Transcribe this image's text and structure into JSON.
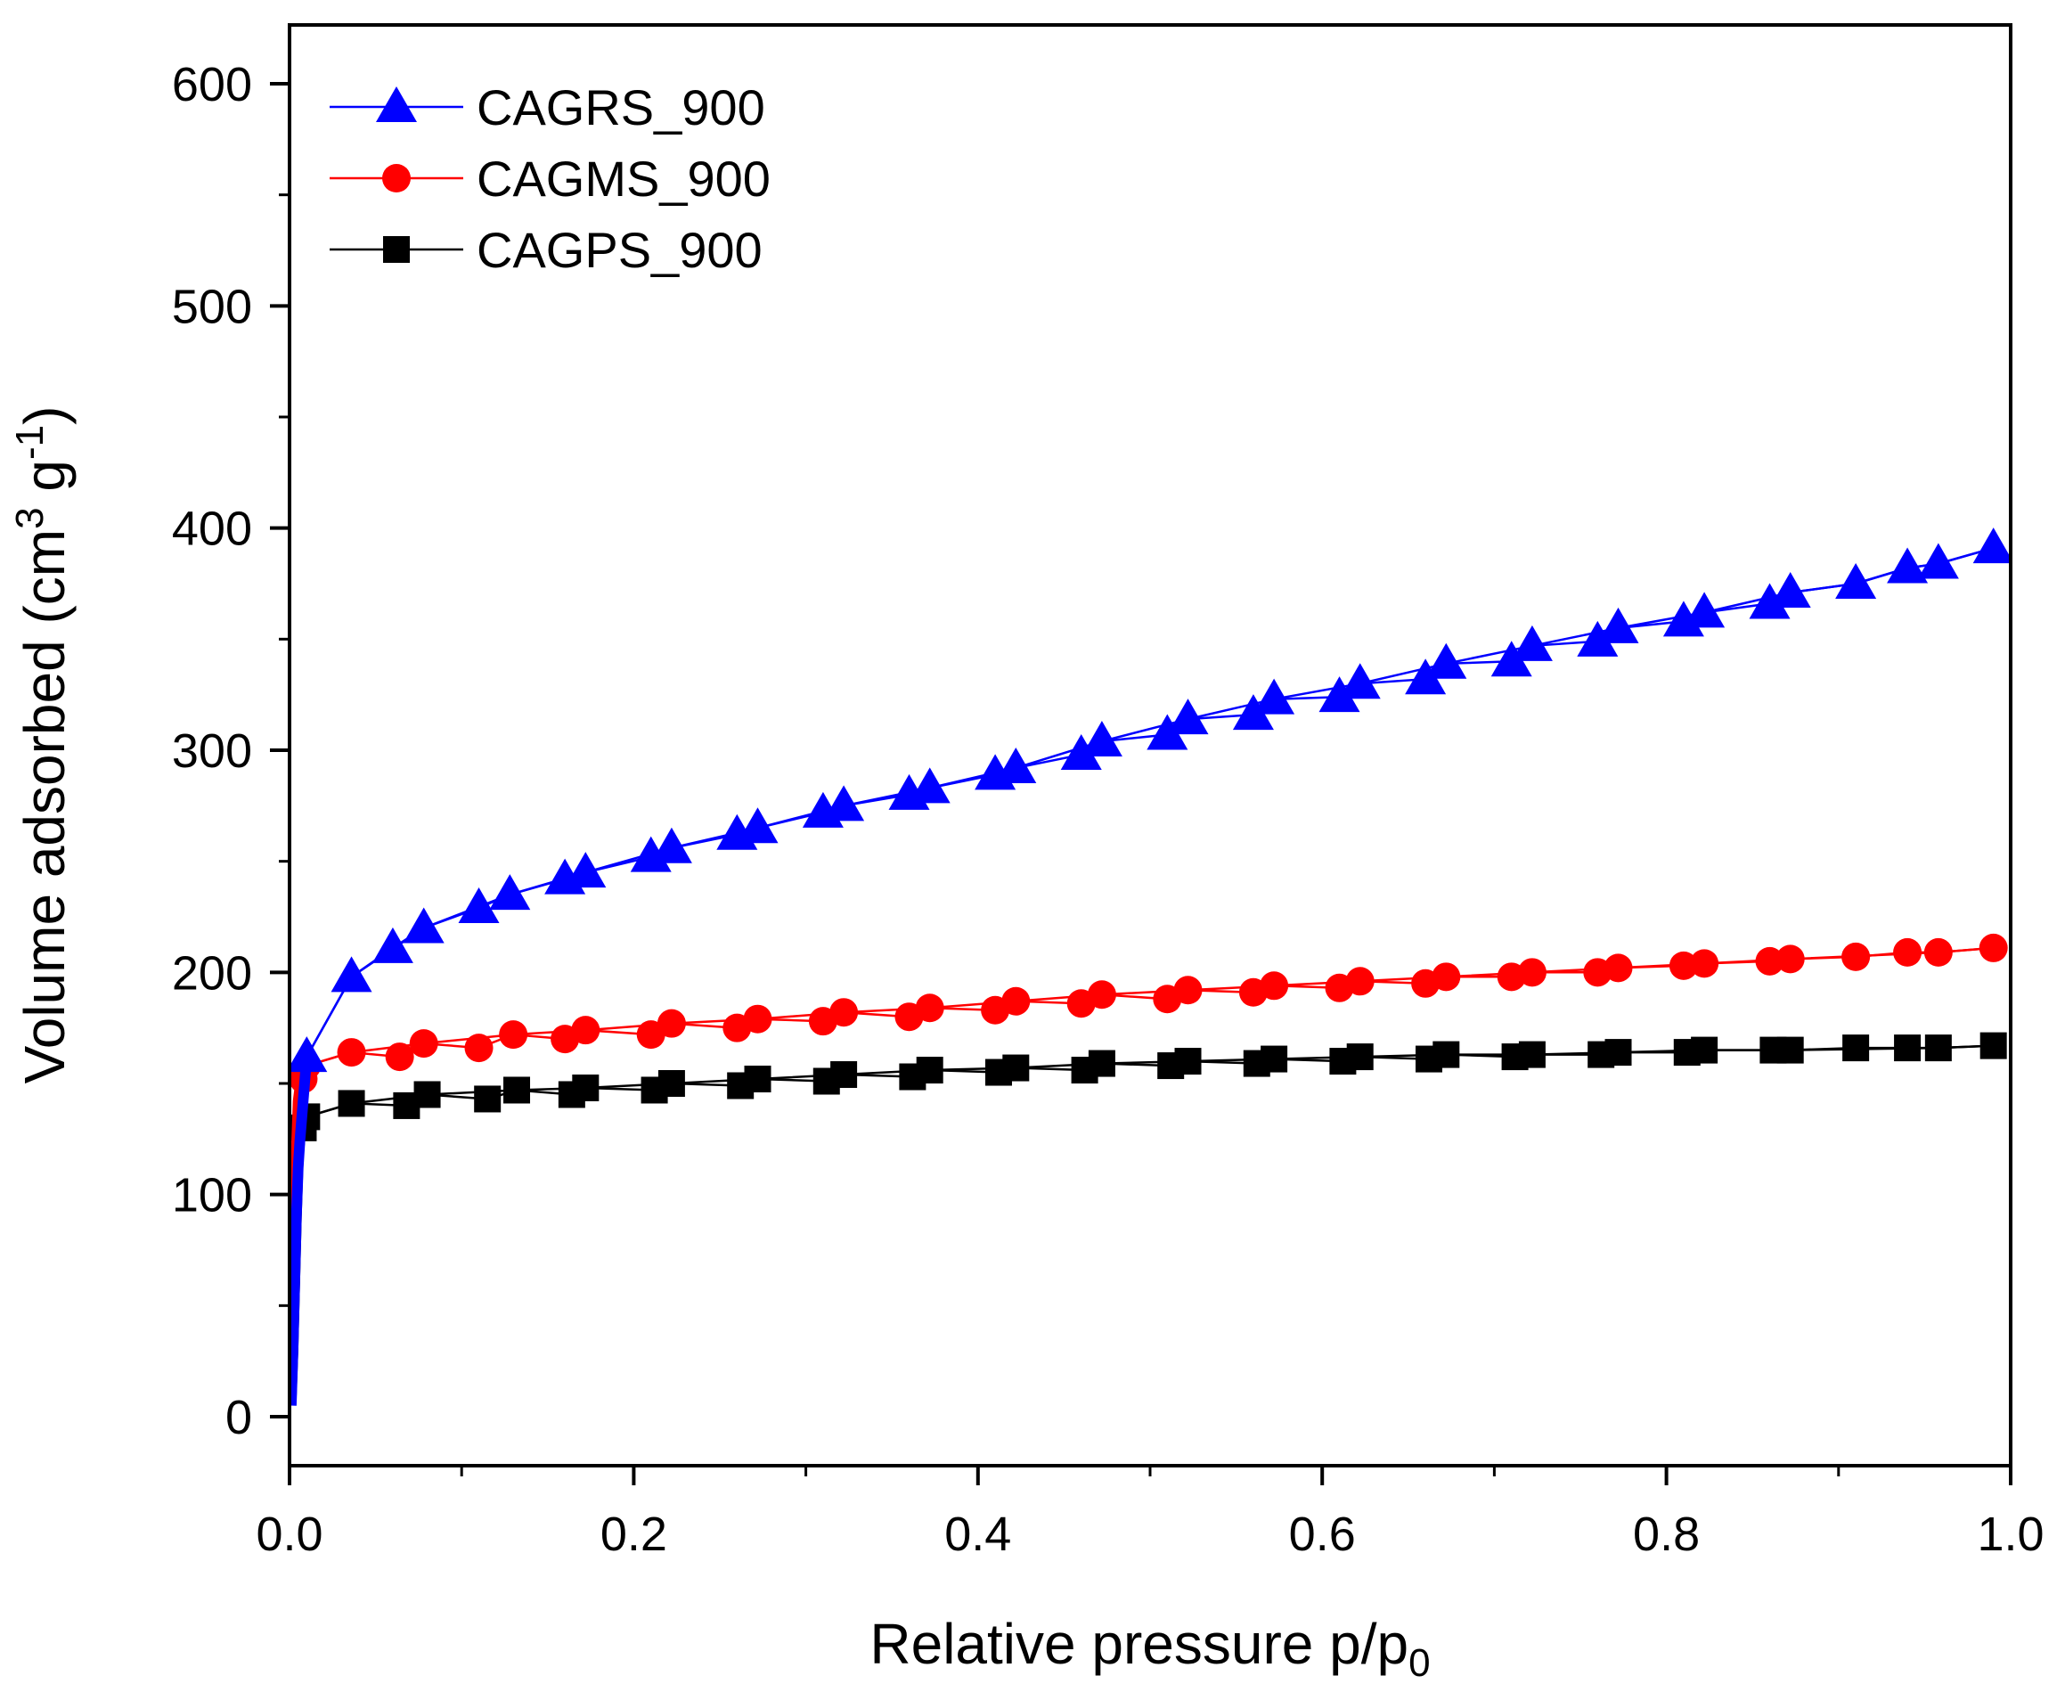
{
  "chart_data": {
    "type": "line",
    "title": "",
    "xlabel": {
      "main": "Relative pressure p/p",
      "sub": "0"
    },
    "ylabel": {
      "main": "Volume adsorbed (cm",
      "sup1": "3",
      "mid": " g",
      "sup2": "-1",
      "end": ")"
    },
    "xlim": [
      0.0,
      1.0
    ],
    "ylim": [
      -25,
      625
    ],
    "x_ticks": [
      0.0,
      0.2,
      0.4,
      0.6,
      0.8,
      1.0
    ],
    "x_tick_labels": [
      "0.0",
      "0.2",
      "0.4",
      "0.6",
      "0.8",
      "1.0"
    ],
    "y_ticks": [
      0,
      100,
      200,
      300,
      400,
      500,
      600
    ],
    "y_tick_labels": [
      "0",
      "100",
      "200",
      "300",
      "400",
      "500",
      "600"
    ],
    "legend_position": "top-left",
    "series": [
      {
        "name": "CAGRS_900",
        "color": "#0000ff",
        "marker": "triangle",
        "adsorption": [
          [
            0.001,
            5
          ],
          [
            0.002,
            30
          ],
          [
            0.003,
            60
          ],
          [
            0.004,
            90
          ],
          [
            0.005,
            112
          ],
          [
            0.006,
            124
          ],
          [
            0.01,
            162
          ],
          [
            0.036,
            198
          ],
          [
            0.06,
            211
          ],
          [
            0.078,
            220
          ],
          [
            0.11,
            229
          ],
          [
            0.128,
            235
          ],
          [
            0.16,
            242
          ],
          [
            0.172,
            245
          ],
          [
            0.21,
            252
          ],
          [
            0.222,
            256
          ],
          [
            0.26,
            262
          ],
          [
            0.272,
            265
          ],
          [
            0.31,
            272
          ],
          [
            0.322,
            275
          ],
          [
            0.36,
            280
          ],
          [
            0.372,
            283
          ],
          [
            0.41,
            289
          ],
          [
            0.422,
            292
          ],
          [
            0.46,
            298
          ],
          [
            0.472,
            304
          ],
          [
            0.51,
            307
          ],
          [
            0.522,
            314
          ],
          [
            0.56,
            316
          ],
          [
            0.572,
            323
          ],
          [
            0.61,
            324
          ],
          [
            0.622,
            330
          ],
          [
            0.66,
            332
          ],
          [
            0.672,
            339
          ],
          [
            0.71,
            340
          ],
          [
            0.722,
            347
          ],
          [
            0.76,
            349
          ],
          [
            0.772,
            355
          ],
          [
            0.81,
            358
          ],
          [
            0.822,
            362
          ],
          [
            0.86,
            366
          ],
          [
            0.872,
            371
          ],
          [
            0.91,
            375
          ],
          [
            0.94,
            382
          ],
          [
            0.958,
            384
          ],
          [
            0.99,
            391
          ]
        ],
        "desorption": [
          [
            0.99,
            391
          ],
          [
            0.958,
            384
          ],
          [
            0.94,
            382
          ],
          [
            0.91,
            375
          ],
          [
            0.872,
            371
          ],
          [
            0.822,
            362
          ],
          [
            0.772,
            355
          ],
          [
            0.722,
            347
          ],
          [
            0.672,
            339
          ],
          [
            0.622,
            330
          ],
          [
            0.572,
            323
          ],
          [
            0.522,
            314
          ],
          [
            0.472,
            304
          ],
          [
            0.422,
            292
          ],
          [
            0.372,
            283
          ],
          [
            0.322,
            275
          ],
          [
            0.272,
            265
          ],
          [
            0.222,
            256
          ],
          [
            0.172,
            245
          ],
          [
            0.128,
            235
          ],
          [
            0.078,
            220
          ],
          [
            0.036,
            198
          ],
          [
            0.01,
            162
          ]
        ]
      },
      {
        "name": "CAGMS_900",
        "color": "#ff0000",
        "marker": "circle",
        "adsorption": [
          [
            0.001,
            10
          ],
          [
            0.002,
            40
          ],
          [
            0.003,
            80
          ],
          [
            0.004,
            120
          ],
          [
            0.005,
            142
          ],
          [
            0.006,
            148
          ],
          [
            0.008,
            152
          ],
          [
            0.01,
            158
          ],
          [
            0.036,
            164
          ],
          [
            0.064,
            162
          ],
          [
            0.078,
            168
          ],
          [
            0.11,
            166
          ],
          [
            0.13,
            172
          ],
          [
            0.16,
            170
          ],
          [
            0.172,
            174
          ],
          [
            0.21,
            172
          ],
          [
            0.222,
            177
          ],
          [
            0.26,
            175
          ],
          [
            0.272,
            179
          ],
          [
            0.31,
            178
          ],
          [
            0.322,
            182
          ],
          [
            0.36,
            180
          ],
          [
            0.372,
            184
          ],
          [
            0.41,
            183
          ],
          [
            0.422,
            187
          ],
          [
            0.46,
            186
          ],
          [
            0.472,
            190
          ],
          [
            0.51,
            188
          ],
          [
            0.522,
            192
          ],
          [
            0.56,
            191
          ],
          [
            0.572,
            194
          ],
          [
            0.61,
            193
          ],
          [
            0.622,
            196
          ],
          [
            0.66,
            195
          ],
          [
            0.672,
            198
          ],
          [
            0.71,
            198
          ],
          [
            0.722,
            200
          ],
          [
            0.76,
            200
          ],
          [
            0.772,
            202
          ],
          [
            0.81,
            203
          ],
          [
            0.822,
            204
          ],
          [
            0.86,
            205
          ],
          [
            0.872,
            206
          ],
          [
            0.91,
            207
          ],
          [
            0.94,
            209
          ],
          [
            0.958,
            209
          ],
          [
            0.99,
            211
          ]
        ],
        "desorption": [
          [
            0.99,
            211
          ],
          [
            0.958,
            209
          ],
          [
            0.872,
            206
          ],
          [
            0.822,
            204
          ],
          [
            0.772,
            202
          ],
          [
            0.722,
            200
          ],
          [
            0.672,
            198
          ],
          [
            0.622,
            196
          ],
          [
            0.572,
            194
          ],
          [
            0.522,
            192
          ],
          [
            0.472,
            190
          ],
          [
            0.422,
            187
          ],
          [
            0.372,
            184
          ],
          [
            0.322,
            182
          ],
          [
            0.272,
            179
          ],
          [
            0.222,
            177
          ],
          [
            0.172,
            174
          ],
          [
            0.13,
            172
          ],
          [
            0.078,
            168
          ],
          [
            0.036,
            164
          ],
          [
            0.01,
            158
          ]
        ]
      },
      {
        "name": "CAGPS_900",
        "color": "#000000",
        "marker": "square",
        "adsorption": [
          [
            0.001,
            8
          ],
          [
            0.002,
            30
          ],
          [
            0.003,
            60
          ],
          [
            0.004,
            90
          ],
          [
            0.005,
            115
          ],
          [
            0.006,
            125
          ],
          [
            0.008,
            130
          ],
          [
            0.01,
            135
          ],
          [
            0.036,
            141
          ],
          [
            0.068,
            140
          ],
          [
            0.08,
            145
          ],
          [
            0.115,
            143
          ],
          [
            0.132,
            147
          ],
          [
            0.164,
            145
          ],
          [
            0.172,
            148
          ],
          [
            0.212,
            147
          ],
          [
            0.222,
            150
          ],
          [
            0.262,
            149
          ],
          [
            0.272,
            152
          ],
          [
            0.312,
            151
          ],
          [
            0.322,
            154
          ],
          [
            0.362,
            153
          ],
          [
            0.372,
            156
          ],
          [
            0.412,
            155
          ],
          [
            0.422,
            157
          ],
          [
            0.462,
            156
          ],
          [
            0.472,
            159
          ],
          [
            0.512,
            158
          ],
          [
            0.522,
            160
          ],
          [
            0.562,
            159
          ],
          [
            0.572,
            161
          ],
          [
            0.612,
            160
          ],
          [
            0.622,
            162
          ],
          [
            0.662,
            161
          ],
          [
            0.672,
            163
          ],
          [
            0.712,
            162
          ],
          [
            0.722,
            163
          ],
          [
            0.762,
            163
          ],
          [
            0.772,
            164
          ],
          [
            0.812,
            164
          ],
          [
            0.822,
            165
          ],
          [
            0.862,
            165
          ],
          [
            0.872,
            165
          ],
          [
            0.91,
            166
          ],
          [
            0.94,
            166
          ],
          [
            0.958,
            166
          ],
          [
            0.99,
            167
          ]
        ],
        "desorption": [
          [
            0.99,
            167
          ],
          [
            0.958,
            166
          ],
          [
            0.872,
            165
          ],
          [
            0.822,
            165
          ],
          [
            0.772,
            164
          ],
          [
            0.722,
            163
          ],
          [
            0.672,
            163
          ],
          [
            0.622,
            162
          ],
          [
            0.572,
            161
          ],
          [
            0.522,
            160
          ],
          [
            0.472,
            159
          ],
          [
            0.422,
            157
          ],
          [
            0.372,
            156
          ],
          [
            0.322,
            154
          ],
          [
            0.272,
            152
          ],
          [
            0.222,
            150
          ],
          [
            0.172,
            148
          ],
          [
            0.132,
            147
          ],
          [
            0.08,
            145
          ],
          [
            0.036,
            141
          ],
          [
            0.01,
            135
          ]
        ]
      }
    ]
  }
}
